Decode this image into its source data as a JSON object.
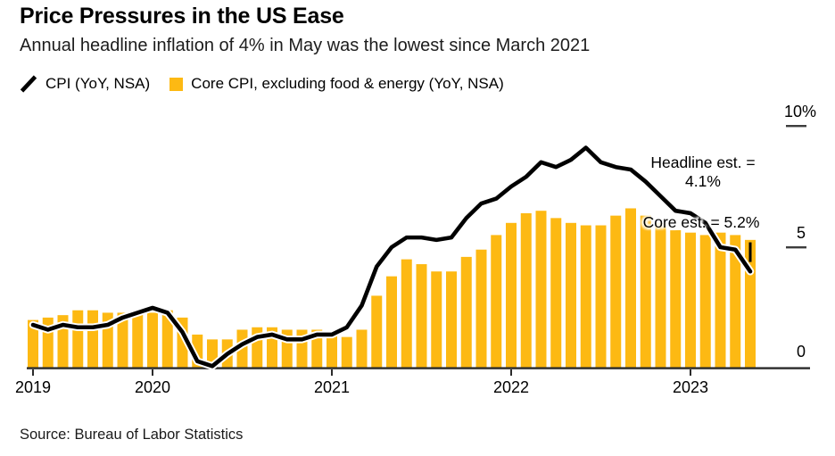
{
  "header": {
    "title": "Price Pressures in the US Ease",
    "subtitle": "Annual headline inflation of 4% in May was the lowest since March 2021"
  },
  "legend": {
    "line_label": "CPI (YoY, NSA)",
    "bar_label": "Core CPI, excluding food & energy (YoY, NSA)"
  },
  "annotations": {
    "headline_line1": "Headline est. =",
    "headline_line2": "4.1%",
    "core": "Core est. = 5.2%"
  },
  "source": "Source: Bureau of Labor Statistics",
  "colors": {
    "bar": "#FDB913",
    "line": "#000000",
    "line_casing": "#ffffff",
    "axis": "#2b2b2b",
    "tick_dash": "#3d3d3d",
    "text": "#000000"
  },
  "chart_data": {
    "type": "bar+line",
    "title": "Price Pressures in the US Ease",
    "x_start": "2019-05",
    "x_end": "2023-05",
    "x_labels": [
      "2019-05",
      "2019-06",
      "2019-07",
      "2019-08",
      "2019-09",
      "2019-10",
      "2019-11",
      "2019-12",
      "2020-01",
      "2020-02",
      "2020-03",
      "2020-04",
      "2020-05",
      "2020-06",
      "2020-07",
      "2020-08",
      "2020-09",
      "2020-10",
      "2020-11",
      "2020-12",
      "2021-01",
      "2021-02",
      "2021-03",
      "2021-04",
      "2021-05",
      "2021-06",
      "2021-07",
      "2021-08",
      "2021-09",
      "2021-10",
      "2021-11",
      "2021-12",
      "2022-01",
      "2022-02",
      "2022-03",
      "2022-04",
      "2022-05",
      "2022-06",
      "2022-07",
      "2022-08",
      "2022-09",
      "2022-10",
      "2022-11",
      "2022-12",
      "2023-01",
      "2023-02",
      "2023-03",
      "2023-04",
      "2023-05"
    ],
    "series": [
      {
        "name": "CPI (YoY, NSA)",
        "render": "line",
        "color": "#000000",
        "values": [
          1.8,
          1.6,
          1.8,
          1.7,
          1.7,
          1.8,
          2.1,
          2.3,
          2.5,
          2.3,
          1.5,
          0.3,
          0.1,
          0.6,
          1.0,
          1.3,
          1.4,
          1.2,
          1.2,
          1.4,
          1.4,
          1.7,
          2.6,
          4.2,
          5.0,
          5.4,
          5.4,
          5.3,
          5.4,
          6.2,
          6.8,
          7.0,
          7.5,
          7.9,
          8.5,
          8.3,
          8.6,
          9.1,
          8.5,
          8.3,
          8.2,
          7.7,
          7.1,
          6.5,
          6.4,
          6.0,
          5.0,
          4.9,
          4.0
        ]
      },
      {
        "name": "Core CPI, excluding food & energy (YoY, NSA)",
        "render": "bar",
        "color": "#FDB913",
        "values": [
          2.0,
          2.1,
          2.2,
          2.4,
          2.4,
          2.3,
          2.3,
          2.3,
          2.3,
          2.4,
          2.1,
          1.4,
          1.2,
          1.2,
          1.6,
          1.7,
          1.7,
          1.6,
          1.6,
          1.6,
          1.4,
          1.3,
          1.6,
          3.0,
          3.8,
          4.5,
          4.3,
          4.0,
          4.0,
          4.6,
          4.9,
          5.5,
          6.0,
          6.4,
          6.5,
          6.2,
          6.0,
          5.9,
          5.9,
          6.3,
          6.6,
          6.3,
          6.0,
          5.7,
          5.6,
          5.5,
          5.6,
          5.5,
          5.3
        ]
      }
    ],
    "ylim": [
      0,
      10
    ],
    "yticks": [
      {
        "value": 0,
        "label": "0",
        "dash": false
      },
      {
        "value": 5,
        "label": "5",
        "dash": true
      },
      {
        "value": 10,
        "label": "10%",
        "dash": true
      }
    ],
    "xticks": [
      {
        "index": 0,
        "label": "2019"
      },
      {
        "index": 8,
        "label": "2020"
      },
      {
        "index": 20,
        "label": "2021"
      },
      {
        "index": 32,
        "label": "2022"
      },
      {
        "index": 44,
        "label": "2023"
      }
    ],
    "estimate_marker": {
      "series": "Core CPI",
      "value": 5.2,
      "month_index": 48
    },
    "legend_position": "top-left",
    "grid": false,
    "y_axis_side": "right"
  }
}
